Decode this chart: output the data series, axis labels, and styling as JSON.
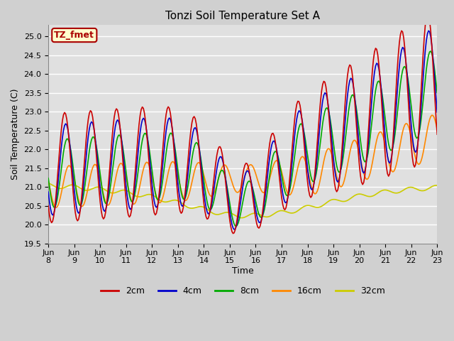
{
  "title": "Tonzi Soil Temperature Set A",
  "xlabel": "Time",
  "ylabel": "Soil Temperature (C)",
  "ylim": [
    19.5,
    25.3
  ],
  "xlim": [
    0,
    360
  ],
  "fig_facecolor": "#d0d0d0",
  "plot_facecolor": "#e0e0e0",
  "grid_color": "#ffffff",
  "annotation_text": "TZ_fmet",
  "annotation_bg": "#ffffcc",
  "annotation_border": "#aa0000",
  "tick_labels": [
    "Jun 8",
    "Jun 9",
    "Jun 10",
    "Jun 11",
    "Jun 12",
    "Jun 13",
    "Jun 14",
    "Jun 15",
    "Jun 16",
    "Jun 17",
    "Jun 18",
    "Jun 19",
    "Jun 20",
    "Jun 21",
    "Jun 22",
    "Jun 23"
  ],
  "tick_positions": [
    0,
    24,
    48,
    72,
    96,
    120,
    144,
    168,
    192,
    216,
    240,
    264,
    288,
    312,
    336,
    360
  ],
  "legend_labels": [
    "2cm",
    "4cm",
    "8cm",
    "16cm",
    "32cm"
  ],
  "line_colors": [
    "#cc0000",
    "#0000cc",
    "#00aa00",
    "#ff8800",
    "#cccc00"
  ],
  "line_widths": [
    1.2,
    1.2,
    1.2,
    1.2,
    1.2
  ]
}
